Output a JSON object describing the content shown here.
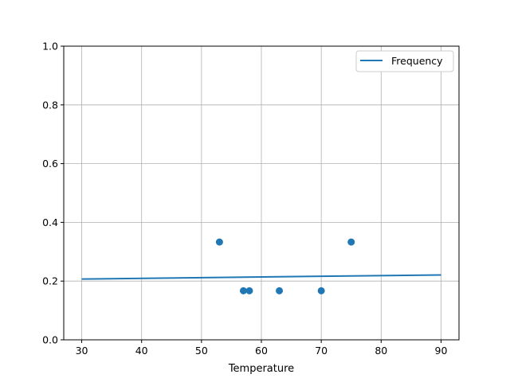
{
  "chart_data": {
    "type": "scatter",
    "title": "",
    "xlabel": "Temperature",
    "ylabel": "",
    "xlim": [
      27,
      93
    ],
    "ylim": [
      0,
      1.0
    ],
    "xticks": [
      30,
      40,
      50,
      60,
      70,
      80,
      90
    ],
    "xtick_labels": [
      "30",
      "40",
      "50",
      "60",
      "70",
      "80",
      "90"
    ],
    "yticks": [
      0,
      0.2,
      0.4,
      0.6,
      0.8,
      1.0
    ],
    "ytick_labels": [
      "0.0",
      "0.2",
      "0.4",
      "0.6",
      "0.8",
      "1.0"
    ],
    "grid": true,
    "legend": {
      "placement": "top-right",
      "entries": [
        "Frequency"
      ]
    },
    "colors": {
      "series": "#1f77b4",
      "grid": "#b0b0b0"
    },
    "scatter_points": {
      "x": [
        53,
        57,
        58,
        63,
        70,
        75
      ],
      "y": [
        0.333,
        0.167,
        0.167,
        0.167,
        0.167,
        0.333
      ]
    },
    "series": [
      {
        "name": "Frequency",
        "type": "line",
        "x": [
          30,
          90
        ],
        "y": [
          0.207,
          0.221
        ]
      }
    ]
  }
}
